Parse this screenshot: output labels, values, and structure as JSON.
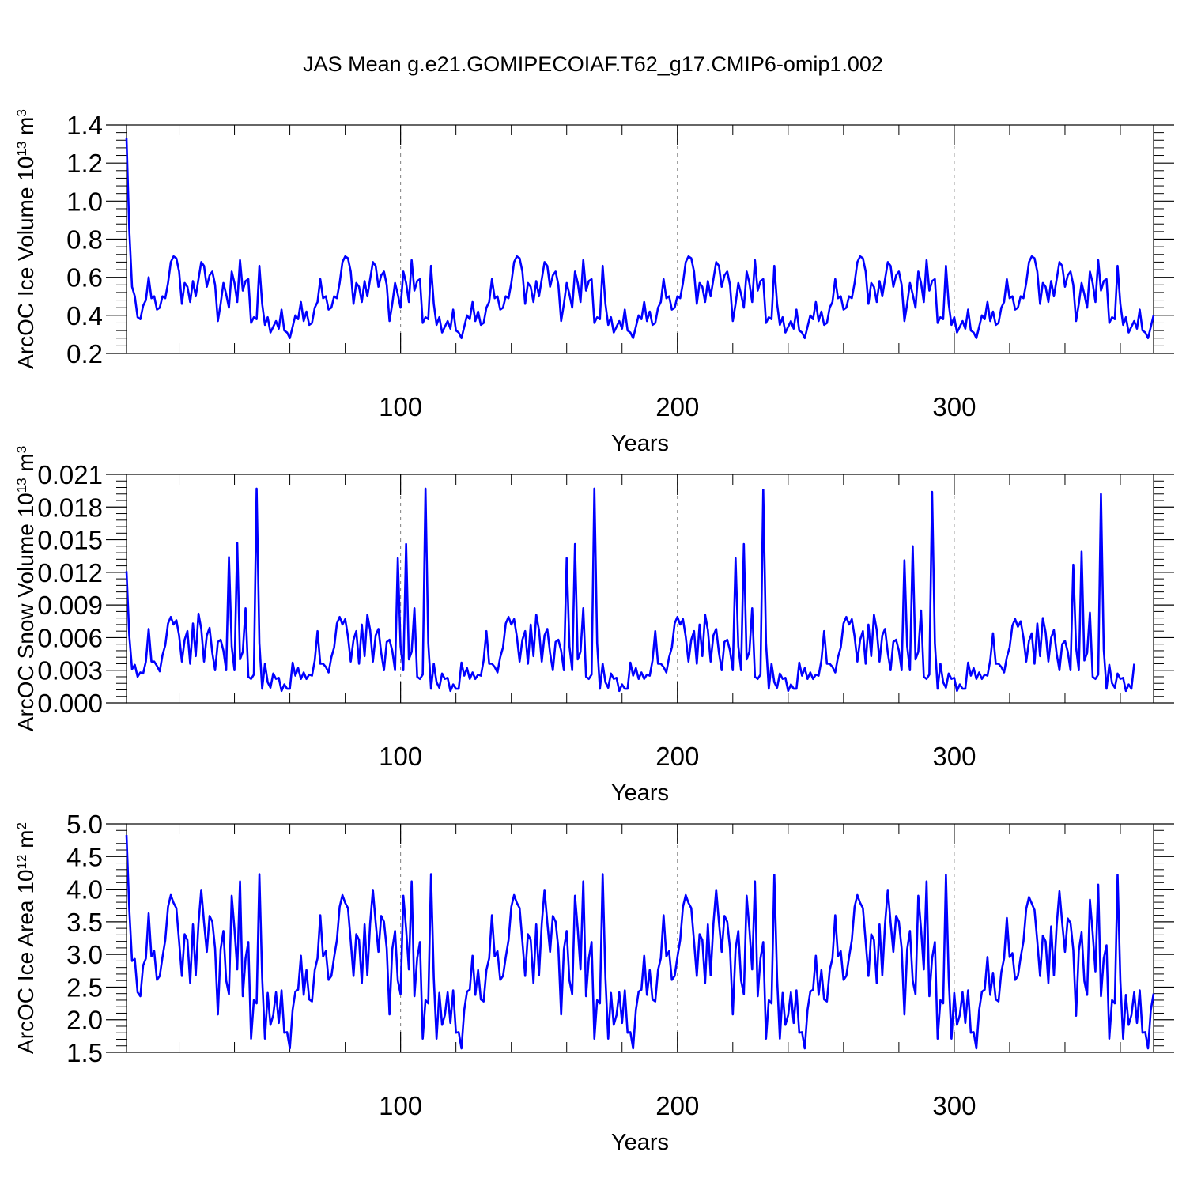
{
  "figure": {
    "title": "JAS Mean g.e21.GOMIPECOIAF.T62_g17.CMIP6-omip1.002",
    "line_color": "#0000ff",
    "grid_color": "#808080"
  },
  "chart_data": [
    {
      "type": "line",
      "name": "ice-volume",
      "ylabel_main": "ArcOC Ice Volume 10",
      "ylabel_exp": "13",
      "ylabel_unit": " m",
      "ylabel_unit_exp": "3",
      "xlabel": "Years",
      "xlim": [
        1,
        372
      ],
      "ylim": [
        0.2,
        1.4
      ],
      "xticks": [
        100,
        200,
        300
      ],
      "yticks": [
        0.2,
        0.4,
        0.6,
        0.8,
        1.0,
        1.2,
        1.4
      ],
      "ytick_labels": [
        "0.2",
        "0.4",
        "0.6",
        "0.8",
        "1.0",
        "1.2",
        "1.4"
      ],
      "grid_x": [
        100,
        200,
        300
      ],
      "x_start": 1,
      "values": [
        1.33,
        0.85,
        0.55,
        0.5,
        0.39,
        0.38,
        0.45,
        0.48,
        0.6,
        0.49,
        0.5,
        0.43,
        0.44,
        0.5,
        0.49,
        0.57,
        0.68,
        0.71,
        0.7,
        0.63,
        0.46,
        0.57,
        0.55,
        0.47,
        0.58,
        0.5,
        0.59,
        0.68,
        0.66,
        0.55,
        0.61,
        0.63,
        0.56,
        0.37,
        0.46,
        0.57,
        0.51,
        0.44,
        0.63,
        0.57,
        0.47,
        0.69,
        0.53,
        0.58,
        0.59,
        0.36,
        0.39,
        0.38,
        0.66,
        0.46,
        0.35,
        0.39,
        0.31,
        0.34,
        0.37,
        0.33,
        0.43,
        0.32,
        0.31,
        0.28,
        0.34,
        0.4,
        0.38,
        0.47,
        0.37,
        0.42,
        0.35,
        0.36,
        0.44,
        0.47,
        0.59,
        0.49,
        0.5,
        0.43,
        0.44,
        0.5,
        0.49,
        0.57,
        0.68,
        0.71,
        0.7,
        0.63,
        0.46,
        0.57,
        0.55,
        0.47,
        0.58,
        0.5,
        0.59,
        0.68,
        0.66,
        0.55,
        0.61,
        0.63,
        0.56,
        0.37,
        0.46,
        0.57,
        0.51,
        0.44,
        0.63,
        0.57,
        0.47,
        0.69,
        0.53,
        0.58,
        0.59,
        0.36,
        0.39,
        0.38,
        0.66,
        0.46,
        0.35,
        0.39,
        0.31,
        0.34,
        0.37,
        0.33,
        0.43,
        0.32,
        0.31,
        0.28,
        0.34,
        0.4,
        0.38,
        0.47,
        0.37,
        0.42,
        0.35,
        0.36,
        0.44,
        0.47,
        0.59,
        0.49,
        0.5,
        0.43,
        0.44,
        0.5,
        0.49,
        0.57,
        0.68,
        0.71,
        0.7,
        0.63,
        0.46,
        0.57,
        0.55,
        0.47,
        0.58,
        0.5,
        0.59,
        0.68,
        0.66,
        0.55,
        0.61,
        0.63,
        0.56,
        0.37,
        0.46,
        0.57,
        0.51,
        0.44,
        0.63,
        0.57,
        0.47,
        0.69,
        0.53,
        0.58,
        0.59,
        0.36,
        0.39,
        0.38,
        0.66,
        0.46,
        0.35,
        0.39,
        0.31,
        0.34,
        0.37,
        0.33,
        0.43,
        0.32,
        0.31,
        0.28,
        0.34,
        0.4,
        0.38,
        0.47,
        0.37,
        0.42,
        0.35,
        0.36,
        0.44,
        0.47,
        0.59,
        0.49,
        0.5,
        0.43,
        0.44,
        0.5,
        0.49,
        0.57,
        0.68,
        0.71,
        0.7,
        0.63,
        0.46,
        0.57,
        0.55,
        0.47,
        0.58,
        0.5,
        0.59,
        0.68,
        0.66,
        0.55,
        0.61,
        0.63,
        0.56,
        0.37,
        0.46,
        0.57,
        0.51,
        0.44,
        0.63,
        0.57,
        0.47,
        0.69,
        0.53,
        0.58,
        0.59,
        0.36,
        0.39,
        0.38,
        0.66,
        0.46,
        0.35,
        0.39,
        0.31,
        0.34,
        0.37,
        0.33,
        0.43,
        0.32,
        0.31,
        0.28,
        0.34,
        0.4,
        0.38,
        0.47,
        0.37,
        0.42,
        0.35,
        0.36,
        0.44,
        0.47,
        0.59,
        0.49,
        0.5,
        0.43,
        0.44,
        0.5,
        0.49,
        0.57,
        0.68,
        0.71,
        0.7,
        0.63,
        0.46,
        0.57,
        0.55,
        0.47,
        0.58,
        0.5,
        0.59,
        0.68,
        0.66,
        0.55,
        0.61,
        0.63,
        0.56,
        0.37,
        0.46,
        0.57,
        0.51,
        0.44,
        0.63,
        0.57,
        0.47,
        0.69,
        0.53,
        0.58,
        0.59,
        0.36,
        0.39,
        0.38,
        0.66,
        0.46,
        0.35,
        0.39,
        0.31,
        0.34,
        0.37,
        0.33,
        0.43,
        0.32,
        0.31,
        0.28,
        0.34,
        0.4,
        0.38,
        0.47,
        0.37,
        0.42,
        0.35,
        0.36,
        0.44,
        0.47,
        0.59,
        0.49,
        0.5,
        0.43,
        0.44,
        0.5,
        0.49,
        0.57,
        0.68,
        0.71,
        0.7,
        0.63,
        0.46,
        0.57,
        0.55,
        0.47,
        0.58,
        0.5,
        0.59,
        0.68,
        0.66,
        0.55,
        0.61,
        0.63,
        0.56,
        0.37,
        0.46,
        0.57,
        0.51,
        0.44,
        0.63,
        0.57,
        0.47,
        0.69,
        0.53,
        0.58,
        0.59,
        0.36,
        0.39,
        0.38,
        0.66,
        0.46,
        0.35,
        0.39,
        0.31,
        0.34,
        0.37,
        0.33,
        0.43,
        0.32,
        0.31,
        0.28,
        0.34,
        0.4
      ]
    },
    {
      "type": "line",
      "name": "snow-volume",
      "ylabel_main": "ArcOC Snow Volume 10",
      "ylabel_exp": "13",
      "ylabel_unit": " m",
      "ylabel_unit_exp": "3",
      "xlabel": "Years",
      "xlim": [
        1,
        372
      ],
      "ylim": [
        0.0,
        0.021
      ],
      "xticks": [
        100,
        200,
        300
      ],
      "yticks": [
        0.0,
        0.003,
        0.006,
        0.009,
        0.012,
        0.015,
        0.018,
        0.021
      ],
      "ytick_labels": [
        "0.000",
        "0.003",
        "0.006",
        "0.009",
        "0.012",
        "0.015",
        "0.018",
        "0.021"
      ],
      "grid_x": [
        100,
        200,
        300
      ],
      "x_start": 1,
      "values": [
        0.0121,
        0.0062,
        0.0031,
        0.0035,
        0.0024,
        0.0028,
        0.0027,
        0.0038,
        0.0068,
        0.0038,
        0.0038,
        0.0034,
        0.0029,
        0.0044,
        0.0053,
        0.0073,
        0.0079,
        0.0072,
        0.0076,
        0.0062,
        0.0038,
        0.0058,
        0.0066,
        0.0036,
        0.0073,
        0.0043,
        0.0082,
        0.0068,
        0.0038,
        0.0062,
        0.0069,
        0.0046,
        0.003,
        0.0056,
        0.0058,
        0.0048,
        0.003,
        0.0134,
        0.0052,
        0.003,
        0.0147,
        0.004,
        0.0047,
        0.0087,
        0.0024,
        0.0022,
        0.0026,
        0.0197,
        0.0055,
        0.0013,
        0.0036,
        0.0019,
        0.0014,
        0.0027,
        0.0022,
        0.0023,
        0.0011,
        0.0017,
        0.0013,
        0.0013,
        0.0037,
        0.0025,
        0.0032,
        0.0022,
        0.0028,
        0.0022,
        0.0026,
        0.0025,
        0.0039,
        0.0066,
        0.0036,
        0.0036,
        0.0033,
        0.0028,
        0.0042,
        0.0051,
        0.0073,
        0.0079,
        0.0072,
        0.0077,
        0.0061,
        0.0038,
        0.0058,
        0.0066,
        0.0036,
        0.0072,
        0.0043,
        0.0081,
        0.0067,
        0.0038,
        0.0062,
        0.0068,
        0.0046,
        0.003,
        0.0056,
        0.0058,
        0.0048,
        0.003,
        0.0133,
        0.0052,
        0.003,
        0.0146,
        0.004,
        0.0047,
        0.0087,
        0.0024,
        0.0022,
        0.0026,
        0.0197,
        0.0055,
        0.0013,
        0.0036,
        0.0019,
        0.0014,
        0.0027,
        0.0022,
        0.0023,
        0.0011,
        0.0017,
        0.0013,
        0.0013,
        0.0037,
        0.0025,
        0.0032,
        0.0022,
        0.0028,
        0.0022,
        0.0026,
        0.0025,
        0.0039,
        0.0066,
        0.0036,
        0.0036,
        0.0033,
        0.0028,
        0.0042,
        0.0051,
        0.0073,
        0.0079,
        0.0072,
        0.0077,
        0.0061,
        0.0038,
        0.0058,
        0.0066,
        0.0036,
        0.0072,
        0.0043,
        0.0081,
        0.0067,
        0.0038,
        0.0062,
        0.0068,
        0.0046,
        0.003,
        0.0056,
        0.0058,
        0.0048,
        0.003,
        0.0133,
        0.0052,
        0.003,
        0.0146,
        0.004,
        0.0047,
        0.0087,
        0.0024,
        0.0022,
        0.0026,
        0.0197,
        0.0055,
        0.0013,
        0.0036,
        0.0019,
        0.0014,
        0.0027,
        0.0022,
        0.0023,
        0.0011,
        0.0017,
        0.0013,
        0.0013,
        0.0037,
        0.0025,
        0.0032,
        0.0022,
        0.0028,
        0.0022,
        0.0026,
        0.0025,
        0.0039,
        0.0066,
        0.0036,
        0.0036,
        0.0033,
        0.0028,
        0.0042,
        0.0051,
        0.0073,
        0.0079,
        0.0072,
        0.0077,
        0.0061,
        0.0038,
        0.0058,
        0.0066,
        0.0036,
        0.0072,
        0.0043,
        0.0081,
        0.0067,
        0.0038,
        0.0062,
        0.0068,
        0.0046,
        0.003,
        0.0056,
        0.0058,
        0.0048,
        0.003,
        0.0133,
        0.0052,
        0.003,
        0.0146,
        0.004,
        0.0047,
        0.0087,
        0.0024,
        0.0022,
        0.0026,
        0.0196,
        0.0055,
        0.0013,
        0.0036,
        0.0019,
        0.0014,
        0.0027,
        0.0022,
        0.0023,
        0.0011,
        0.0017,
        0.0013,
        0.0013,
        0.0037,
        0.0025,
        0.0032,
        0.0022,
        0.0028,
        0.0022,
        0.0026,
        0.0025,
        0.0039,
        0.0066,
        0.0036,
        0.0036,
        0.0033,
        0.0028,
        0.0042,
        0.0051,
        0.0073,
        0.0079,
        0.0072,
        0.0077,
        0.0061,
        0.0038,
        0.0058,
        0.0066,
        0.0036,
        0.0072,
        0.0043,
        0.0081,
        0.0067,
        0.0038,
        0.0062,
        0.0068,
        0.0046,
        0.003,
        0.0056,
        0.0058,
        0.0048,
        0.003,
        0.0131,
        0.0052,
        0.003,
        0.0144,
        0.004,
        0.0047,
        0.0085,
        0.0024,
        0.0022,
        0.0026,
        0.0194,
        0.0055,
        0.0013,
        0.0036,
        0.0019,
        0.0014,
        0.0027,
        0.0022,
        0.0023,
        0.0011,
        0.0017,
        0.0013,
        0.0013,
        0.0037,
        0.0025,
        0.0032,
        0.0022,
        0.0028,
        0.0022,
        0.0026,
        0.0025,
        0.0039,
        0.0064,
        0.0036,
        0.0036,
        0.0033,
        0.0028,
        0.0042,
        0.0051,
        0.0071,
        0.0077,
        0.007,
        0.0075,
        0.006,
        0.0038,
        0.0057,
        0.0064,
        0.0036,
        0.0073,
        0.0043,
        0.0078,
        0.0065,
        0.0038,
        0.006,
        0.0067,
        0.0045,
        0.003,
        0.0054,
        0.0057,
        0.0047,
        0.003,
        0.0127,
        0.0051,
        0.003,
        0.0139,
        0.0039,
        0.0046,
        0.0083,
        0.0024,
        0.0022,
        0.0026,
        0.0192,
        0.0049,
        0.0013,
        0.0035,
        0.0018,
        0.0014,
        0.0027,
        0.0022,
        0.0023,
        0.0011,
        0.0017,
        0.0013,
        0.0036
      ]
    },
    {
      "type": "line",
      "name": "ice-area",
      "ylabel_main": "ArcOC Ice Area 10",
      "ylabel_exp": "12",
      "ylabel_unit": " m",
      "ylabel_unit_exp": "2",
      "xlabel": "Years",
      "xlim": [
        1,
        372
      ],
      "ylim": [
        1.5,
        5.0
      ],
      "xticks": [
        100,
        200,
        300
      ],
      "yticks": [
        1.5,
        2.0,
        2.5,
        3.0,
        3.5,
        4.0,
        4.5,
        5.0
      ],
      "ytick_labels": [
        "1.5",
        "2.0",
        "2.5",
        "3.0",
        "3.5",
        "4.0",
        "4.5",
        "5.0"
      ],
      "grid_x": [
        100,
        200,
        300
      ],
      "x_start": 1,
      "values": [
        4.83,
        3.7,
        2.9,
        2.93,
        2.42,
        2.36,
        2.83,
        2.94,
        3.63,
        2.97,
        3.05,
        2.61,
        2.67,
        2.96,
        3.22,
        3.73,
        3.91,
        3.79,
        3.71,
        3.2,
        2.67,
        3.31,
        3.22,
        2.56,
        3.46,
        2.68,
        3.47,
        3.99,
        3.49,
        3.04,
        3.59,
        3.5,
        3.09,
        2.08,
        3.08,
        3.36,
        2.6,
        2.39,
        3.9,
        3.39,
        2.77,
        4.12,
        2.36,
        2.94,
        3.19,
        1.71,
        2.3,
        2.25,
        4.23,
        2.64,
        1.71,
        2.41,
        1.92,
        2.07,
        2.42,
        1.95,
        2.45,
        1.8,
        1.81,
        1.56,
        2.15,
        2.43,
        2.46,
        2.98,
        2.38,
        2.76,
        2.31,
        2.28,
        2.76,
        2.94,
        3.6,
        2.97,
        3.05,
        2.61,
        2.67,
        2.96,
        3.22,
        3.73,
        3.91,
        3.79,
        3.71,
        3.2,
        2.67,
        3.31,
        3.22,
        2.56,
        3.46,
        2.68,
        3.47,
        3.99,
        3.49,
        3.04,
        3.59,
        3.5,
        3.09,
        2.08,
        3.08,
        3.36,
        2.6,
        2.39,
        3.9,
        3.39,
        2.77,
        4.12,
        2.36,
        2.94,
        3.19,
        1.71,
        2.3,
        2.25,
        4.23,
        2.64,
        1.71,
        2.41,
        1.92,
        2.07,
        2.42,
        1.95,
        2.45,
        1.8,
        1.81,
        1.56,
        2.15,
        2.43,
        2.46,
        2.98,
        2.38,
        2.76,
        2.31,
        2.28,
        2.76,
        2.94,
        3.6,
        2.97,
        3.05,
        2.61,
        2.67,
        2.96,
        3.22,
        3.73,
        3.91,
        3.79,
        3.71,
        3.2,
        2.67,
        3.31,
        3.22,
        2.56,
        3.46,
        2.68,
        3.47,
        3.99,
        3.49,
        3.04,
        3.59,
        3.5,
        3.09,
        2.08,
        3.08,
        3.36,
        2.6,
        2.39,
        3.9,
        3.39,
        2.77,
        4.12,
        2.36,
        2.94,
        3.19,
        1.71,
        2.3,
        2.25,
        4.23,
        2.64,
        1.71,
        2.41,
        1.92,
        2.07,
        2.42,
        1.95,
        2.45,
        1.8,
        1.81,
        1.56,
        2.15,
        2.43,
        2.46,
        2.98,
        2.38,
        2.76,
        2.31,
        2.28,
        2.76,
        2.94,
        3.6,
        2.97,
        3.05,
        2.61,
        2.67,
        2.96,
        3.22,
        3.73,
        3.91,
        3.79,
        3.71,
        3.2,
        2.67,
        3.31,
        3.22,
        2.56,
        3.46,
        2.68,
        3.47,
        3.99,
        3.49,
        3.04,
        3.59,
        3.5,
        3.09,
        2.08,
        3.08,
        3.36,
        2.6,
        2.39,
        3.9,
        3.39,
        2.77,
        4.12,
        2.36,
        2.94,
        3.19,
        1.71,
        2.3,
        2.25,
        4.22,
        2.64,
        1.71,
        2.41,
        1.92,
        2.07,
        2.42,
        1.95,
        2.45,
        1.8,
        1.81,
        1.56,
        2.15,
        2.43,
        2.46,
        2.98,
        2.38,
        2.76,
        2.31,
        2.28,
        2.76,
        2.94,
        3.6,
        2.97,
        3.05,
        2.61,
        2.67,
        2.96,
        3.22,
        3.73,
        3.91,
        3.79,
        3.71,
        3.2,
        2.67,
        3.31,
        3.22,
        2.56,
        3.46,
        2.68,
        3.47,
        3.99,
        3.49,
        3.04,
        3.59,
        3.5,
        3.09,
        2.08,
        3.08,
        3.36,
        2.6,
        2.39,
        3.9,
        3.39,
        2.77,
        4.12,
        2.36,
        2.94,
        3.19,
        1.71,
        2.3,
        2.25,
        4.22,
        2.64,
        1.71,
        2.41,
        1.92,
        2.07,
        2.42,
        1.95,
        2.45,
        1.8,
        1.81,
        1.56,
        2.15,
        2.43,
        2.46,
        2.96,
        2.38,
        2.72,
        2.31,
        2.28,
        2.73,
        2.94,
        3.56,
        2.96,
        3.02,
        2.61,
        2.67,
        2.96,
        3.2,
        3.7,
        3.88,
        3.78,
        3.68,
        3.2,
        2.67,
        3.29,
        3.2,
        2.56,
        3.43,
        2.68,
        3.45,
        3.97,
        3.48,
        3.04,
        3.55,
        3.48,
        3.07,
        2.06,
        3.06,
        3.34,
        2.59,
        2.38,
        3.84,
        3.33,
        2.74,
        4.07,
        2.36,
        2.94,
        3.14,
        1.71,
        2.3,
        2.25,
        4.22,
        2.6,
        1.71,
        2.38,
        1.92,
        2.07,
        2.42,
        1.95,
        2.45,
        1.8,
        1.81,
        1.56,
        2.15,
        2.4
      ]
    }
  ]
}
